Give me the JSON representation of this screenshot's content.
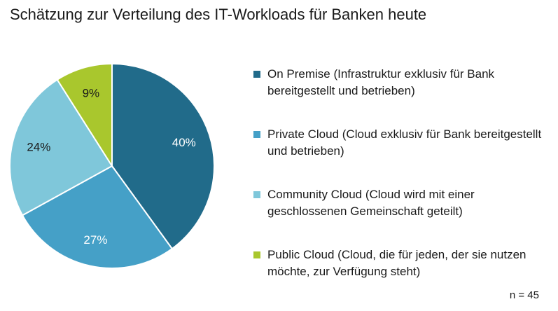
{
  "chart_data": {
    "type": "pie",
    "title": "Schätzung zur Verteilung des IT-Workloads für Banken heute",
    "unit": "%",
    "categories": [
      "On Premise (Infrastruktur exklusiv für Bank bereitgestellt und betrieben)",
      "Private Cloud (Cloud exklusiv für Bank bereitgestellt und betrieben)",
      "Community Cloud (Cloud wird mit einer geschlossenen Gemeinschaft geteilt)",
      "Public Cloud (Cloud, die für jeden, der sie nutzen möchte, zur Verfügung steht)"
    ],
    "values": [
      40,
      27,
      24,
      9
    ],
    "value_labels": [
      "40%",
      "27%",
      "24%",
      "9%"
    ],
    "colors": [
      "#216b8a",
      "#45a0c7",
      "#7fc7da",
      "#a9c72d"
    ],
    "label_colors": [
      "#ffffff",
      "#ffffff",
      "#1a1a1a",
      "#1a1a1a"
    ],
    "legend_placement": "right",
    "start_angle_deg": 0,
    "direction": "clockwise",
    "note": "n = 45"
  }
}
